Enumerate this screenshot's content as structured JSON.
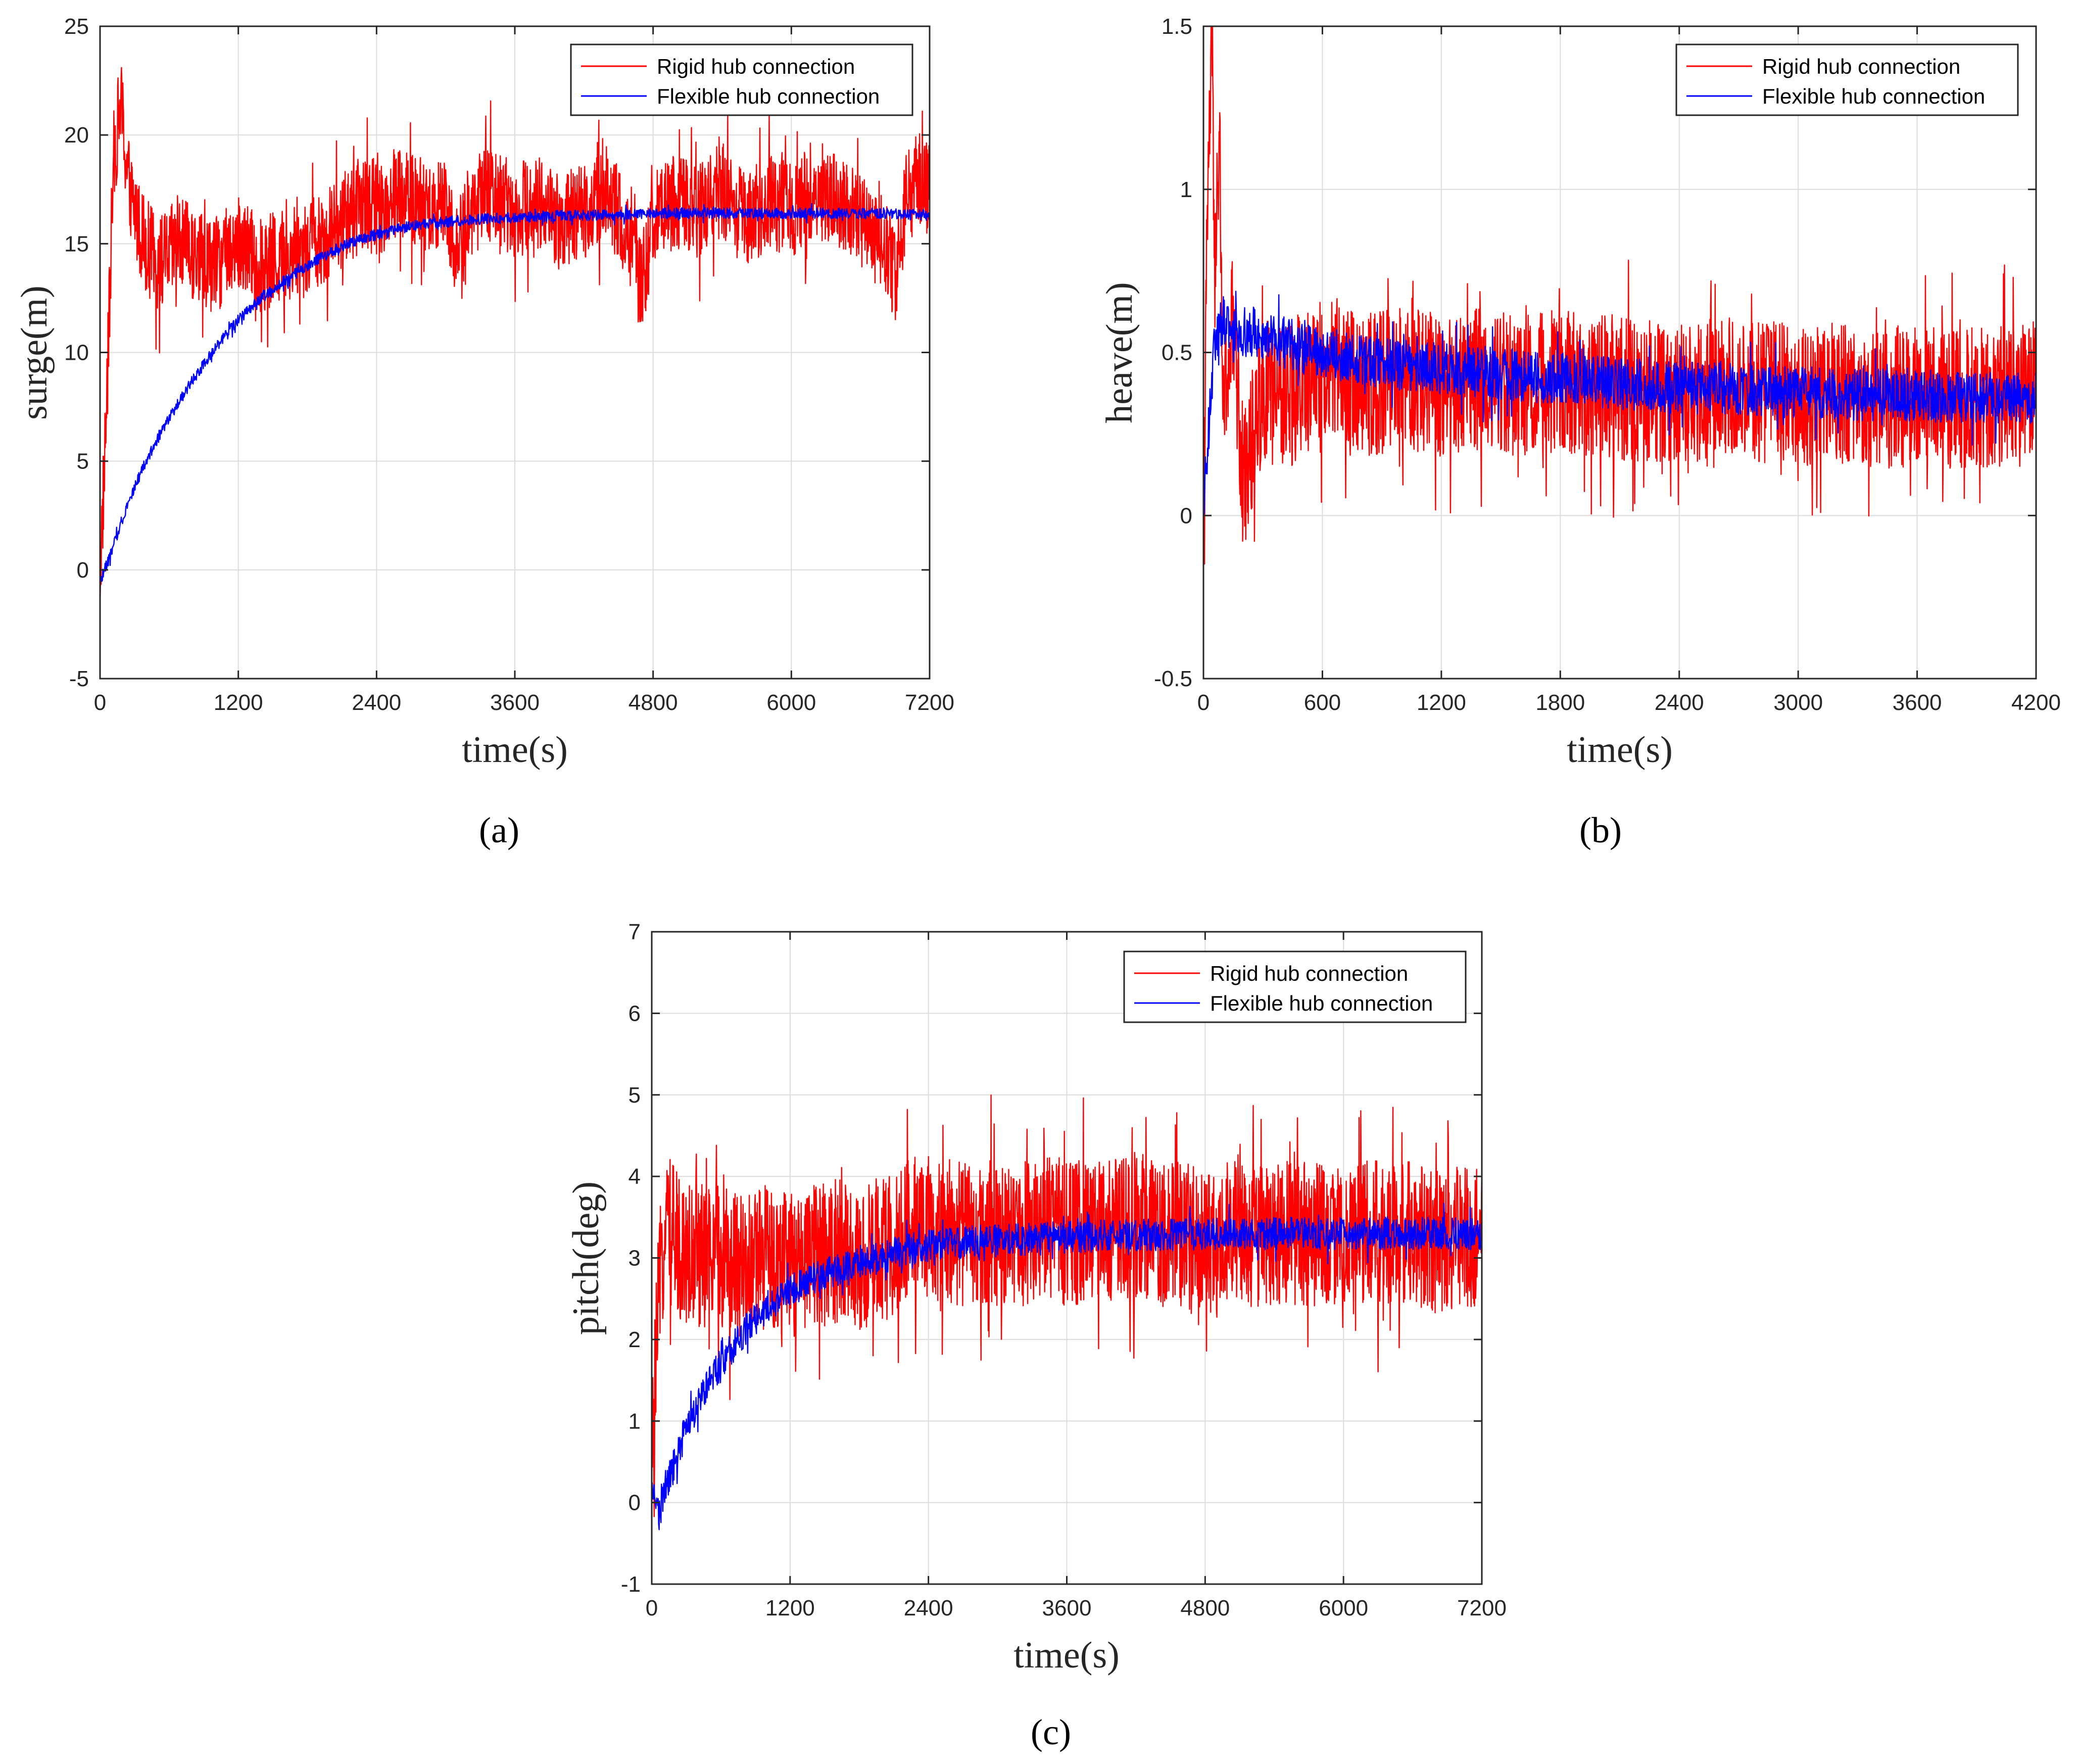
{
  "chart_data": [
    {
      "id": "a",
      "type": "line",
      "panel_label": "(a)",
      "title": "",
      "xlabel": "time(s)",
      "ylabel": "surge(m)",
      "xlim": [
        0,
        7200
      ],
      "ylim": [
        -5,
        25
      ],
      "xticks": [
        0,
        1200,
        2400,
        3600,
        4800,
        6000,
        7200
      ],
      "yticks": [
        -5,
        0,
        5,
        10,
        15,
        20,
        25
      ],
      "grid": true,
      "legend": "top-right",
      "series": [
        {
          "name": "Rigid hub connection",
          "color": "#ff0000",
          "x": [
            0,
            60,
            120,
            180,
            240,
            300,
            400,
            500,
            600,
            700,
            800,
            1000,
            1200,
            1400,
            1600,
            1800,
            2000,
            2200,
            2300,
            2400,
            2600,
            2800,
            3000,
            3100,
            3200,
            3400,
            3600,
            3800,
            4000,
            4200,
            4400,
            4600,
            4700,
            4800,
            5000,
            5200,
            5400,
            5600,
            5800,
            6000,
            6200,
            6400,
            6600,
            6800,
            6900,
            7000,
            7100,
            7200
          ],
          "values": [
            -0.5,
            8.0,
            19.0,
            21.5,
            18.0,
            16.5,
            15.0,
            14.0,
            14.5,
            15.0,
            14.5,
            14.0,
            15.0,
            14.0,
            14.5,
            15.0,
            15.5,
            16.5,
            17.0,
            16.5,
            17.5,
            16.5,
            17.0,
            14.5,
            16.5,
            17.5,
            16.5,
            17.0,
            16.0,
            16.5,
            17.5,
            15.0,
            13.0,
            16.0,
            17.0,
            16.5,
            17.5,
            16.0,
            17.0,
            16.5,
            17.5,
            17.0,
            16.0,
            15.0,
            13.5,
            17.0,
            18.0,
            17.5
          ],
          "envelope": 2.2
        },
        {
          "name": "Flexible hub connection",
          "color": "#0000ff",
          "x": [
            0,
            100,
            200,
            300,
            400,
            500,
            600,
            800,
            1000,
            1200,
            1400,
            1600,
            1800,
            2000,
            2200,
            2400,
            2600,
            2800,
            3000,
            3200,
            3600,
            4000,
            4400,
            4800,
            5200,
            5600,
            6000,
            6400,
            6800,
            7200
          ],
          "values": [
            -0.5,
            0.8,
            2.5,
            3.8,
            5.0,
            6.0,
            7.0,
            8.7,
            10.2,
            11.5,
            12.5,
            13.3,
            14.0,
            14.6,
            15.1,
            15.4,
            15.7,
            15.9,
            16.0,
            16.1,
            16.2,
            16.3,
            16.3,
            16.4,
            16.4,
            16.4,
            16.4,
            16.4,
            16.4,
            16.3
          ],
          "envelope": 0.25
        }
      ]
    },
    {
      "id": "b",
      "type": "line",
      "panel_label": "(b)",
      "title": "",
      "xlabel": "time(s)",
      "ylabel": "heave(m)",
      "xlim": [
        0,
        4200
      ],
      "ylim": [
        -0.5,
        1.5
      ],
      "xticks": [
        0,
        600,
        1200,
        1800,
        2400,
        3000,
        3600,
        4200
      ],
      "yticks": [
        -0.5,
        0,
        0.5,
        1,
        1.5
      ],
      "grid": true,
      "legend": "top-right",
      "series": [
        {
          "name": "Rigid hub connection",
          "color": "#ff0000",
          "x": [
            0,
            20,
            40,
            60,
            80,
            100,
            150,
            200,
            300,
            400,
            600,
            800,
            1000,
            1200,
            1400,
            1600,
            1800,
            2000,
            2200,
            2400,
            2600,
            2800,
            3000,
            3200,
            3400,
            3600,
            3800,
            4000,
            4200
          ],
          "values": [
            0.0,
            0.9,
            1.45,
            0.7,
            1.2,
            0.3,
            0.6,
            0.1,
            0.4,
            0.35,
            0.45,
            0.4,
            0.42,
            0.4,
            0.42,
            0.4,
            0.41,
            0.4,
            0.38,
            0.37,
            0.39,
            0.38,
            0.37,
            0.38,
            0.36,
            0.37,
            0.36,
            0.37,
            0.36
          ],
          "envelope": 0.22
        },
        {
          "name": "Flexible hub connection",
          "color": "#0000ff",
          "x": [
            0,
            30,
            60,
            100,
            200,
            400,
            600,
            800,
            1000,
            1200,
            1400,
            1600,
            1800,
            2000,
            2200,
            2400,
            2600,
            2800,
            3000,
            3200,
            3400,
            3600,
            3800,
            4000,
            4200
          ],
          "values": [
            0.05,
            0.3,
            0.55,
            0.6,
            0.57,
            0.53,
            0.5,
            0.48,
            0.46,
            0.45,
            0.44,
            0.43,
            0.42,
            0.41,
            0.4,
            0.39,
            0.39,
            0.38,
            0.38,
            0.37,
            0.37,
            0.37,
            0.36,
            0.36,
            0.36
          ],
          "envelope": 0.08
        }
      ]
    },
    {
      "id": "c",
      "type": "line",
      "panel_label": "(c)",
      "title": "",
      "xlabel": "time(s)",
      "ylabel": "pitch(deg)",
      "xlim": [
        0,
        7200
      ],
      "ylim": [
        -1,
        7
      ],
      "xticks": [
        0,
        1200,
        2400,
        3600,
        4800,
        6000,
        7200
      ],
      "yticks": [
        -1,
        0,
        1,
        2,
        3,
        4,
        5,
        6,
        7
      ],
      "grid": true,
      "legend": "top-right",
      "series": [
        {
          "name": "Rigid hub connection",
          "color": "#ff0000",
          "x": [
            0,
            60,
            120,
            200,
            400,
            600,
            800,
            1000,
            1200,
            1400,
            1600,
            1800,
            2000,
            2200,
            2400,
            2600,
            2800,
            3000,
            3200,
            3400,
            3600,
            3800,
            4000,
            4200,
            4400,
            4600,
            4800,
            5000,
            5200,
            5400,
            5600,
            5800,
            6000,
            6200,
            6400,
            6600,
            6800,
            7000,
            7200
          ],
          "values": [
            0.5,
            2.5,
            3.5,
            3.2,
            3.0,
            3.0,
            2.9,
            3.0,
            2.9,
            3.0,
            3.1,
            3.0,
            3.1,
            3.3,
            3.4,
            3.3,
            3.3,
            3.3,
            3.3,
            3.4,
            3.3,
            3.3,
            3.3,
            3.4,
            3.3,
            3.3,
            3.2,
            3.3,
            3.3,
            3.3,
            3.3,
            3.3,
            3.3,
            3.3,
            3.3,
            3.3,
            3.2,
            3.3,
            3.3
          ],
          "envelope": 0.9
        },
        {
          "name": "Flexible hub connection",
          "color": "#0000ff",
          "x": [
            0,
            60,
            120,
            200,
            300,
            400,
            500,
            600,
            800,
            1000,
            1200,
            1400,
            1600,
            1800,
            2000,
            2200,
            2400,
            2800,
            3200,
            3600,
            4000,
            4400,
            4800,
            5200,
            5600,
            6000,
            6400,
            6800,
            7200
          ],
          "values": [
            0.2,
            -0.2,
            0.2,
            0.5,
            0.9,
            1.2,
            1.5,
            1.7,
            2.1,
            2.4,
            2.6,
            2.75,
            2.85,
            2.95,
            3.0,
            3.1,
            3.15,
            3.2,
            3.22,
            3.25,
            3.27,
            3.28,
            3.3,
            3.3,
            3.3,
            3.3,
            3.3,
            3.3,
            3.3
          ],
          "envelope": 0.2
        }
      ]
    }
  ]
}
